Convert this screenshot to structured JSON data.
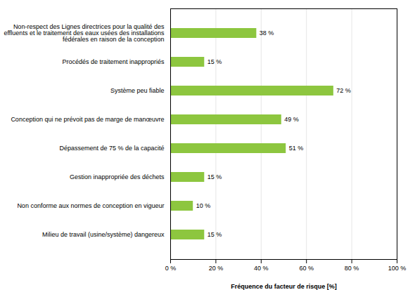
{
  "chart_data": {
    "type": "bar",
    "orientation": "horizontal",
    "categories": [
      "Milieu de travail (usine/système) dangereux",
      "Non conforme aux normes de conception en vigueur",
      "Gestion inappropriée des déchets",
      "Dépassement de 75 % de la capacité",
      "Conception qui ne prévoit pas de marge de manœuvre",
      "Système peu fiable",
      "Procédés de traitement inappropriés",
      "Non-respect des Lignes directrices pour la qualité des\neffluents et le traitement des eaux usées des installations\nfédérales en raison de la conception"
    ],
    "values": [
      15,
      10,
      15,
      51,
      49,
      72,
      15,
      38
    ],
    "value_labels": [
      "15 %",
      "10 %",
      "15 %",
      "51 %",
      "49 %",
      "72 %",
      "15 %",
      "38 %"
    ],
    "data_labels": true,
    "color": "#8DC63F",
    "xlabel": "Fréquence du facteur de risque [%]",
    "xlim": [
      0,
      100
    ],
    "xticks": [
      {
        "value": 0,
        "label": "0 %"
      },
      {
        "value": 20,
        "label": "20 %"
      },
      {
        "value": 40,
        "label": "40 %"
      },
      {
        "value": 60,
        "label": "60 %"
      },
      {
        "value": 80,
        "label": "80 %"
      },
      {
        "value": 100,
        "label": "100 %"
      }
    ],
    "grid": true
  }
}
